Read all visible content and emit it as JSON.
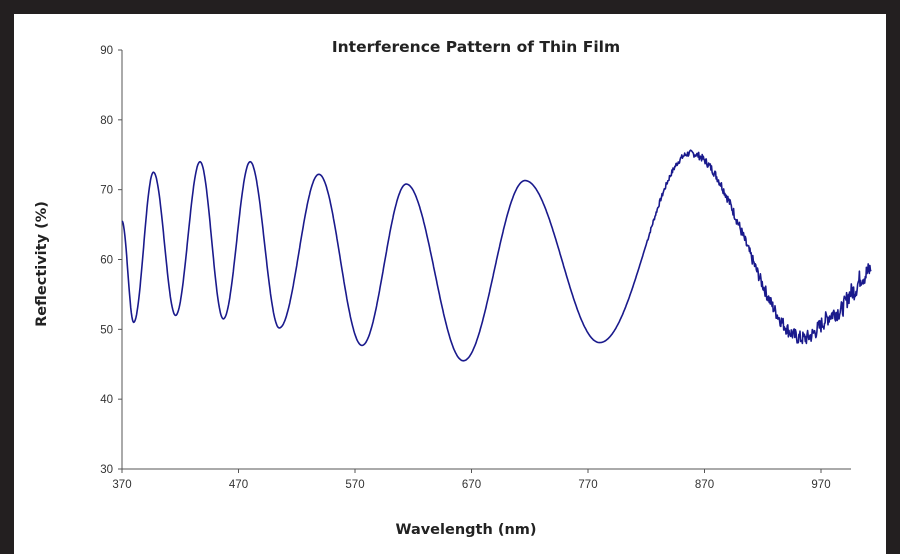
{
  "chart_data": {
    "type": "line",
    "title": "Interference Pattern of Thin Film",
    "xlabel": "Wavelength (nm)",
    "ylabel": "Reflectivity (%)",
    "xlim": [
      370,
      1015
    ],
    "ylim": [
      30,
      90
    ],
    "x_ticks": [
      "370",
      "470",
      "570",
      "670",
      "770",
      "870",
      "970"
    ],
    "y_ticks": [
      "30",
      "40",
      "50",
      "60",
      "70",
      "80",
      "90"
    ],
    "grid": false,
    "legend": "none",
    "series": [
      {
        "color": "#1a1a8c",
        "noise_visible_above_nm": 820,
        "extrema": [
          {
            "x": 370,
            "y": 65.5
          },
          {
            "x": 380,
            "y": 51
          },
          {
            "x": 397,
            "y": 72.5
          },
          {
            "x": 416,
            "y": 52
          },
          {
            "x": 437,
            "y": 74
          },
          {
            "x": 457,
            "y": 51.5
          },
          {
            "x": 480,
            "y": 74
          },
          {
            "x": 505,
            "y": 50.2
          },
          {
            "x": 539,
            "y": 72.2
          },
          {
            "x": 576,
            "y": 47.7
          },
          {
            "x": 614,
            "y": 70.8
          },
          {
            "x": 663,
            "y": 45.5
          },
          {
            "x": 716,
            "y": 71.3
          },
          {
            "x": 780,
            "y": 48.1
          },
          {
            "x": 858,
            "y": 75.2
          },
          {
            "x": 955,
            "y": 48.7
          },
          {
            "x": 985,
            "y": 52.5
          },
          {
            "x": 998,
            "y": 55.5
          },
          {
            "x": 1005,
            "y": 57.5
          },
          {
            "x": 1013,
            "y": 58.5
          }
        ]
      }
    ]
  }
}
